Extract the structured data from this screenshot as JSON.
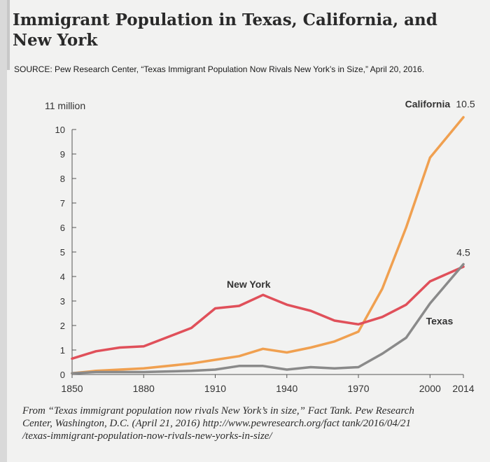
{
  "header": {
    "title": "Immigrant Population in Texas, California, and New York",
    "source": "SOURCE: Pew Research Center, “Texas Immigrant Population Now Rivals New York’s in Size,” April 20, 2016."
  },
  "chart_data": {
    "type": "line",
    "title": "",
    "xlabel": "",
    "ylabel": "",
    "y_unit_label": "11 million",
    "x": [
      1850,
      1860,
      1870,
      1880,
      1900,
      1910,
      1920,
      1930,
      1940,
      1950,
      1960,
      1970,
      1980,
      1990,
      2000,
      2014
    ],
    "xticks": [
      "1850",
      "1880",
      "1910",
      "1940",
      "1970",
      "2000",
      "2014"
    ],
    "yticks": [
      "0",
      "1",
      "2",
      "3",
      "4",
      "5",
      "6",
      "7",
      "8",
      "9",
      "10"
    ],
    "ylim": [
      0,
      11
    ],
    "grid": false,
    "series": [
      {
        "name": "New York",
        "color": "#e0505a",
        "values": [
          0.65,
          0.95,
          1.1,
          1.15,
          1.9,
          2.7,
          2.8,
          3.25,
          2.85,
          2.6,
          2.2,
          2.05,
          2.35,
          2.85,
          3.8,
          4.4
        ]
      },
      {
        "name": "California",
        "color": "#f0a050",
        "end_label": "10.5",
        "values": [
          0.05,
          0.15,
          0.2,
          0.25,
          0.45,
          0.6,
          0.75,
          1.05,
          0.9,
          1.1,
          1.35,
          1.75,
          3.5,
          6.0,
          8.85,
          10.5
        ]
      },
      {
        "name": "Texas",
        "color": "#8a8a8a",
        "end_label": "4.5",
        "values": [
          0.05,
          0.1,
          0.1,
          0.1,
          0.15,
          0.2,
          0.35,
          0.35,
          0.2,
          0.3,
          0.25,
          0.3,
          0.85,
          1.5,
          2.9,
          4.5
        ]
      }
    ]
  },
  "footer": {
    "citation": "From “Texas immigrant population now rivals New York’s in size,” Fact Tank. Pew Research\nCenter, Washington, D.C. (April 21, 2016) http://www.pewresearch.org/fact tank/2016/04/21\n/texas-immigrant-population-now-rivals-new-yorks-in-size/"
  }
}
